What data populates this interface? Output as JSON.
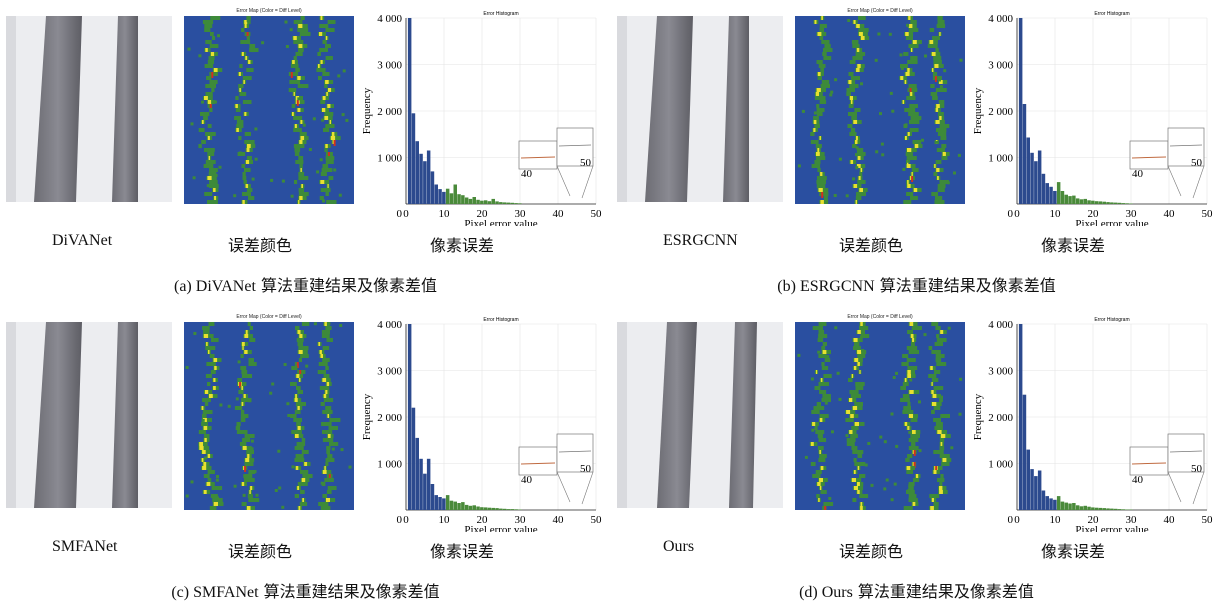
{
  "common": {
    "map_title": "Error Map (Color = Diff Level)",
    "hist_title": "Error Histogram",
    "xlabel": "Pixel error value",
    "ylabel": "Frequency",
    "col2_label": "误差颜色",
    "col3_label": "像素误差",
    "inset_left_tick": "40",
    "inset_right_tick": "50"
  },
  "colors": {
    "map_bg": "#2a4fa0",
    "green": "#3d8a3a",
    "yellow": "#e8e030",
    "red": "#d03020",
    "bar_blue": "#2c4a8e",
    "bar_green": "#4a8a3a"
  },
  "panels": [
    {
      "method": "DiVANet",
      "caption_tag": "(a) DiVANet",
      "caption_rest": " 算法重建结果及像素差值"
    },
    {
      "method": "ESRGCNN",
      "caption_tag": "(b) ESRGCNN",
      "caption_rest": " 算法重建结果及像素差值"
    },
    {
      "method": "SMFANet",
      "caption_tag": "(c) SMFANet",
      "caption_rest": " 算法重建结果及像素差值"
    },
    {
      "method": "Ours",
      "caption_tag": "(d) Ours",
      "caption_rest": " 算法重建结果及像素差值"
    }
  ],
  "chart_data": [
    {
      "type": "bar",
      "title": "Error Histogram",
      "xlabel": "Pixel error value",
      "ylabel": "Frequency",
      "xlim": [
        0,
        50
      ],
      "ylim": [
        0,
        4000
      ],
      "xticks": [
        "0",
        "10",
        "20",
        "30",
        "40",
        "50"
      ],
      "yticks": [
        "1 000",
        "2 000",
        "3 000",
        "4 000"
      ],
      "x": [
        1,
        2,
        3,
        4,
        5,
        6,
        7,
        8,
        9,
        10,
        11,
        12,
        13,
        14,
        15,
        16,
        17,
        18,
        19,
        20,
        21,
        22,
        23,
        24,
        25,
        26,
        27,
        28,
        29,
        30
      ],
      "values": [
        4000,
        1950,
        1350,
        1080,
        920,
        1150,
        700,
        420,
        320,
        260,
        330,
        230,
        420,
        210,
        190,
        140,
        110,
        150,
        90,
        70,
        80,
        60,
        110,
        55,
        40,
        35,
        30,
        25,
        20,
        15
      ]
    },
    {
      "type": "bar",
      "title": "Error Histogram",
      "xlabel": "Pixel error value",
      "ylabel": "Frequency",
      "xlim": [
        0,
        50
      ],
      "ylim": [
        0,
        4000
      ],
      "xticks": [
        "0",
        "10",
        "20",
        "30",
        "40",
        "50"
      ],
      "yticks": [
        "1 000",
        "2 000",
        "3 000",
        "4 000"
      ],
      "x": [
        1,
        2,
        3,
        4,
        5,
        6,
        7,
        8,
        9,
        10,
        11,
        12,
        13,
        14,
        15,
        16,
        17,
        18,
        19,
        20,
        21,
        22,
        23,
        24,
        25,
        26,
        27,
        28,
        29,
        30
      ],
      "values": [
        4000,
        2150,
        1430,
        1100,
        920,
        1150,
        650,
        450,
        370,
        280,
        470,
        280,
        200,
        170,
        180,
        120,
        100,
        110,
        80,
        70,
        60,
        55,
        50,
        40,
        35,
        30,
        25,
        20,
        15,
        10
      ]
    },
    {
      "type": "bar",
      "title": "Error Histogram",
      "xlabel": "Pixel error value",
      "ylabel": "Frequency",
      "xlim": [
        0,
        50
      ],
      "ylim": [
        0,
        4000
      ],
      "xticks": [
        "0",
        "10",
        "20",
        "30",
        "40",
        "50"
      ],
      "yticks": [
        "1 000",
        "2 000",
        "3 000",
        "4 000"
      ],
      "x": [
        1,
        2,
        3,
        4,
        5,
        6,
        7,
        8,
        9,
        10,
        11,
        12,
        13,
        14,
        15,
        16,
        17,
        18,
        19,
        20,
        21,
        22,
        23,
        24,
        25,
        26,
        27,
        28,
        29,
        30
      ],
      "values": [
        4000,
        2200,
        1550,
        1100,
        780,
        1100,
        560,
        320,
        280,
        250,
        320,
        200,
        180,
        150,
        170,
        110,
        90,
        100,
        75,
        60,
        55,
        50,
        45,
        40,
        30,
        25,
        20,
        20,
        15,
        10
      ]
    },
    {
      "type": "bar",
      "title": "Error Histogram",
      "xlabel": "Pixel error value",
      "ylabel": "Frequency",
      "xlim": [
        0,
        50
      ],
      "ylim": [
        0,
        4000
      ],
      "xticks": [
        "0",
        "10",
        "20",
        "30",
        "40",
        "50"
      ],
      "yticks": [
        "1 000",
        "2 000",
        "3 000",
        "4 000"
      ],
      "x": [
        1,
        2,
        3,
        4,
        5,
        6,
        7,
        8,
        9,
        10,
        11,
        12,
        13,
        14,
        15,
        16,
        17,
        18,
        19,
        20,
        21,
        22,
        23,
        24,
        25,
        26,
        27,
        28,
        29,
        30
      ],
      "values": [
        4000,
        2480,
        1300,
        880,
        730,
        850,
        420,
        300,
        250,
        220,
        300,
        180,
        160,
        140,
        150,
        100,
        80,
        90,
        70,
        55,
        50,
        45,
        40,
        35,
        30,
        25,
        20,
        15,
        10,
        8
      ]
    }
  ]
}
